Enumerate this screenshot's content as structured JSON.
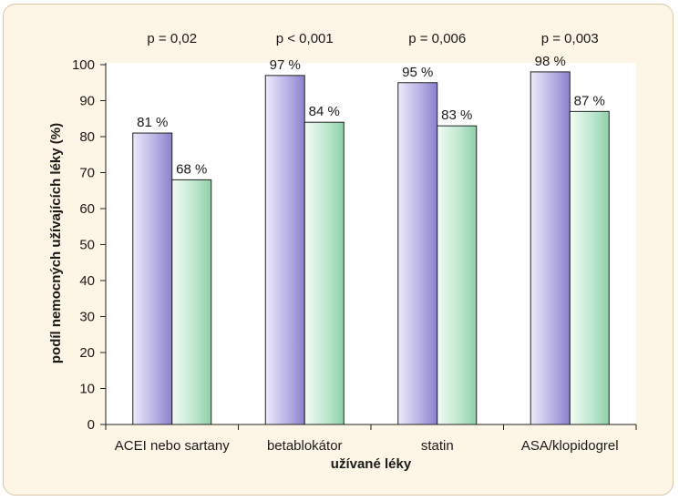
{
  "chart_data": {
    "type": "bar",
    "xlabel": "užívané léky",
    "ylabel": "podíl nemocných užívajících léky (%)",
    "ylim": [
      0,
      100
    ],
    "yticks": [
      0,
      10,
      20,
      30,
      40,
      50,
      60,
      70,
      80,
      90,
      100
    ],
    "categories": [
      "ACEI nebo sartany",
      "betablokátor",
      "statin",
      "ASA/klopidogrel"
    ],
    "p_values": [
      "p = 0,02",
      "p < 0,001",
      "p = 0,006",
      "p = 0,003"
    ],
    "series": [
      {
        "values": [
          81,
          97,
          95,
          98
        ],
        "labels": [
          "81 %",
          "97 %",
          "95 %",
          "98 %"
        ],
        "color": "#b9b3e6"
      },
      {
        "values": [
          68,
          84,
          83,
          87
        ],
        "labels": [
          "68 %",
          "84 %",
          "83 %",
          "87 %"
        ],
        "color": "#bfe8cf"
      }
    ],
    "grid": false
  },
  "colors": {
    "background": "#fdf5e6",
    "border": "#d9c7a4",
    "plot_area": "#ffffff"
  }
}
